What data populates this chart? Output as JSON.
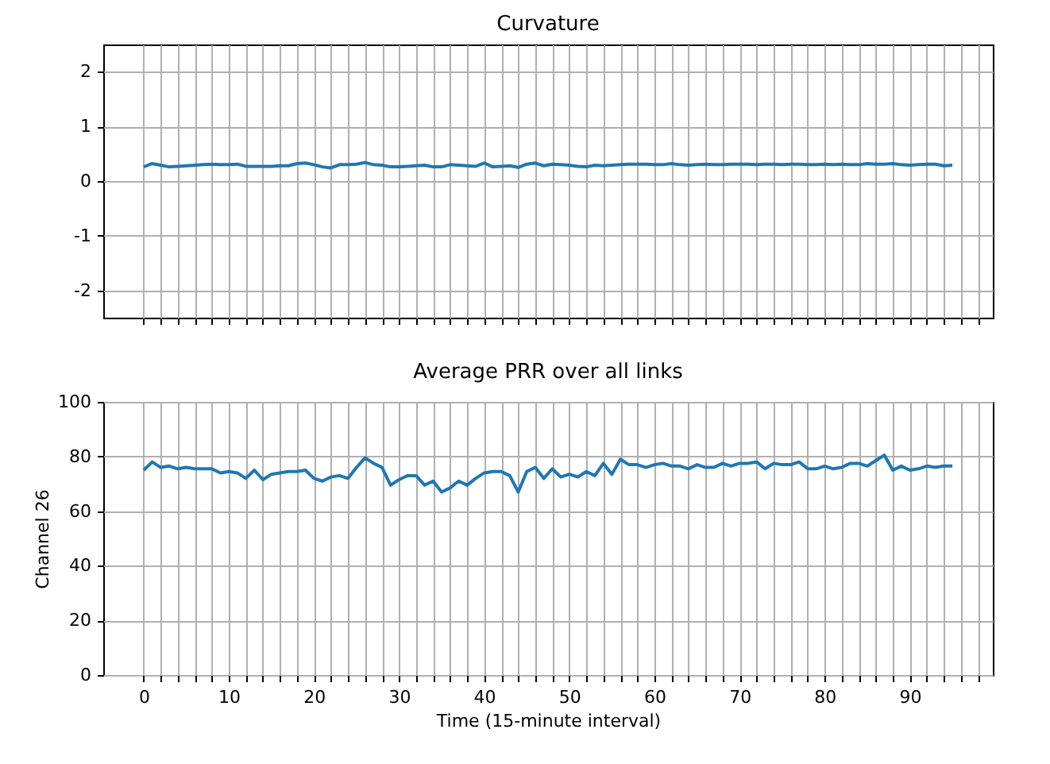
{
  "chart_data": [
    {
      "type": "line",
      "title": "Curvature",
      "x": [
        0,
        1,
        2,
        3,
        4,
        5,
        6,
        7,
        8,
        9,
        10,
        11,
        12,
        13,
        14,
        15,
        16,
        17,
        18,
        19,
        20,
        21,
        22,
        23,
        24,
        25,
        26,
        27,
        28,
        29,
        30,
        31,
        32,
        33,
        34,
        35,
        36,
        37,
        38,
        39,
        40,
        41,
        42,
        43,
        44,
        45,
        46,
        47,
        48,
        49,
        50,
        51,
        52,
        53,
        54,
        55,
        56,
        57,
        58,
        59,
        60,
        61,
        62,
        63,
        64,
        65,
        66,
        67,
        68,
        69,
        70,
        71,
        72,
        73,
        74,
        75,
        76,
        77,
        78,
        79,
        80,
        81,
        82,
        83,
        84,
        85,
        86,
        87,
        88,
        89,
        90,
        91,
        92,
        93,
        94,
        95
      ],
      "series": [
        {
          "color": "#1f77b4",
          "values": [
            0.26,
            0.32,
            0.29,
            0.26,
            0.27,
            0.28,
            0.29,
            0.3,
            0.31,
            0.3,
            0.3,
            0.31,
            0.27,
            0.27,
            0.27,
            0.27,
            0.28,
            0.28,
            0.32,
            0.33,
            0.3,
            0.26,
            0.24,
            0.3,
            0.3,
            0.31,
            0.34,
            0.3,
            0.29,
            0.26,
            0.26,
            0.27,
            0.28,
            0.29,
            0.26,
            0.26,
            0.3,
            0.29,
            0.28,
            0.27,
            0.33,
            0.26,
            0.27,
            0.28,
            0.25,
            0.31,
            0.33,
            0.28,
            0.31,
            0.3,
            0.29,
            0.27,
            0.26,
            0.29,
            0.28,
            0.29,
            0.3,
            0.31,
            0.31,
            0.31,
            0.3,
            0.3,
            0.32,
            0.3,
            0.29,
            0.3,
            0.31,
            0.3,
            0.3,
            0.31,
            0.31,
            0.31,
            0.3,
            0.31,
            0.31,
            0.3,
            0.31,
            0.31,
            0.3,
            0.3,
            0.31,
            0.3,
            0.31,
            0.3,
            0.3,
            0.32,
            0.31,
            0.31,
            0.32,
            0.3,
            0.29,
            0.3,
            0.31,
            0.31,
            0.28,
            0.29
          ]
        }
      ],
      "xlim": [
        -4.75,
        99.75
      ],
      "ylim": [
        -2.5,
        2.5
      ],
      "yticks": [
        -2,
        -1,
        0,
        1,
        2
      ],
      "xticks": [
        0,
        {
          "value": 2,
          "label": null
        },
        {
          "value": 4,
          "label": null
        },
        {
          "value": 6,
          "label": null
        },
        {
          "value": 8,
          "label": null
        },
        10,
        {
          "value": 12,
          "label": null
        },
        {
          "value": 14,
          "label": null
        },
        {
          "value": 16,
          "label": null
        },
        {
          "value": 18,
          "label": null
        },
        20,
        {
          "value": 22,
          "label": null
        },
        {
          "value": 24,
          "label": null
        },
        {
          "value": 26,
          "label": null
        },
        {
          "value": 28,
          "label": null
        },
        30,
        {
          "value": 32,
          "label": null
        },
        {
          "value": 34,
          "label": null
        },
        {
          "value": 36,
          "label": null
        },
        {
          "value": 38,
          "label": null
        },
        40,
        {
          "value": 42,
          "label": null
        },
        {
          "value": 44,
          "label": null
        },
        {
          "value": 46,
          "label": null
        },
        {
          "value": 48,
          "label": null
        },
        50,
        {
          "value": 52,
          "label": null
        },
        {
          "value": 54,
          "label": null
        },
        {
          "value": 56,
          "label": null
        },
        {
          "value": 58,
          "label": null
        },
        60,
        {
          "value": 62,
          "label": null
        },
        {
          "value": 64,
          "label": null
        },
        {
          "value": 66,
          "label": null
        },
        {
          "value": 68,
          "label": null
        },
        70,
        {
          "value": 72,
          "label": null
        },
        {
          "value": 74,
          "label": null
        },
        {
          "value": 76,
          "label": null
        },
        {
          "value": 78,
          "label": null
        },
        80,
        {
          "value": 82,
          "label": null
        },
        {
          "value": 84,
          "label": null
        },
        {
          "value": 86,
          "label": null
        },
        {
          "value": 88,
          "label": null
        },
        90,
        {
          "value": 92,
          "label": null
        },
        {
          "value": 94,
          "label": null
        },
        {
          "value": 96,
          "label": null
        },
        {
          "value": 98,
          "label": null
        }
      ],
      "grid": true,
      "tick_labels": "y"
    },
    {
      "type": "line",
      "title": "Average PRR over all links",
      "xlabel": "Time (15-minute interval)",
      "ylabel": "Channel 26",
      "x": [
        0,
        1,
        2,
        3,
        4,
        5,
        6,
        7,
        8,
        9,
        10,
        11,
        12,
        13,
        14,
        15,
        16,
        17,
        18,
        19,
        20,
        21,
        22,
        23,
        24,
        25,
        26,
        27,
        28,
        29,
        30,
        31,
        32,
        33,
        34,
        35,
        36,
        37,
        38,
        39,
        40,
        41,
        42,
        43,
        44,
        45,
        46,
        47,
        48,
        49,
        50,
        51,
        52,
        53,
        54,
        55,
        56,
        57,
        58,
        59,
        60,
        61,
        62,
        63,
        64,
        65,
        66,
        67,
        68,
        69,
        70,
        71,
        72,
        73,
        74,
        75,
        76,
        77,
        78,
        79,
        80,
        81,
        82,
        83,
        84,
        85,
        86,
        87,
        88,
        89,
        90,
        91,
        92,
        93,
        94,
        95
      ],
      "series": [
        {
          "color": "#1f77b4",
          "values": [
            75,
            78,
            76,
            76.5,
            75.5,
            76,
            75.5,
            75.5,
            75.5,
            74,
            74.5,
            74,
            72,
            75,
            71.5,
            73.5,
            74,
            74.5,
            74.5,
            75,
            72,
            71,
            72.5,
            73,
            72,
            76,
            79.5,
            77.5,
            76,
            69.5,
            71.5,
            73,
            73,
            69.5,
            71,
            67,
            68.5,
            71,
            69.5,
            72,
            74,
            74.5,
            74.5,
            73,
            67,
            74.5,
            76,
            72,
            75.5,
            72.5,
            73.5,
            72.5,
            74.5,
            73,
            77.5,
            73.5,
            79,
            77,
            77,
            76,
            77,
            77.5,
            76.5,
            76.5,
            75.5,
            77,
            76,
            76,
            77.5,
            76.5,
            77.5,
            77.5,
            78,
            75.5,
            77.5,
            77,
            77,
            78,
            75.5,
            75.5,
            76.5,
            75.5,
            76,
            77.5,
            77.5,
            76.5,
            78.5,
            80.5,
            75,
            76.5,
            75,
            75.5,
            76.5,
            76,
            76.5,
            76.5
          ]
        }
      ],
      "xlim": [
        -4.75,
        99.75
      ],
      "ylim": [
        0,
        100
      ],
      "yticks": [
        0,
        20,
        40,
        60,
        80,
        100
      ],
      "xticks": [
        0,
        {
          "value": 2,
          "label": null
        },
        {
          "value": 4,
          "label": null
        },
        {
          "value": 6,
          "label": null
        },
        {
          "value": 8,
          "label": null
        },
        10,
        {
          "value": 12,
          "label": null
        },
        {
          "value": 14,
          "label": null
        },
        {
          "value": 16,
          "label": null
        },
        {
          "value": 18,
          "label": null
        },
        20,
        {
          "value": 22,
          "label": null
        },
        {
          "value": 24,
          "label": null
        },
        {
          "value": 26,
          "label": null
        },
        {
          "value": 28,
          "label": null
        },
        30,
        {
          "value": 32,
          "label": null
        },
        {
          "value": 34,
          "label": null
        },
        {
          "value": 36,
          "label": null
        },
        {
          "value": 38,
          "label": null
        },
        40,
        {
          "value": 42,
          "label": null
        },
        {
          "value": 44,
          "label": null
        },
        {
          "value": 46,
          "label": null
        },
        {
          "value": 48,
          "label": null
        },
        50,
        {
          "value": 52,
          "label": null
        },
        {
          "value": 54,
          "label": null
        },
        {
          "value": 56,
          "label": null
        },
        {
          "value": 58,
          "label": null
        },
        60,
        {
          "value": 62,
          "label": null
        },
        {
          "value": 64,
          "label": null
        },
        {
          "value": 66,
          "label": null
        },
        {
          "value": 68,
          "label": null
        },
        70,
        {
          "value": 72,
          "label": null
        },
        {
          "value": 74,
          "label": null
        },
        {
          "value": 76,
          "label": null
        },
        {
          "value": 78,
          "label": null
        },
        80,
        {
          "value": 82,
          "label": null
        },
        {
          "value": 84,
          "label": null
        },
        {
          "value": 86,
          "label": null
        },
        {
          "value": 88,
          "label": null
        },
        90,
        {
          "value": 92,
          "label": null
        },
        {
          "value": 94,
          "label": null
        },
        {
          "value": 96,
          "label": null
        },
        {
          "value": 98,
          "label": null
        }
      ],
      "grid": true
    }
  ]
}
